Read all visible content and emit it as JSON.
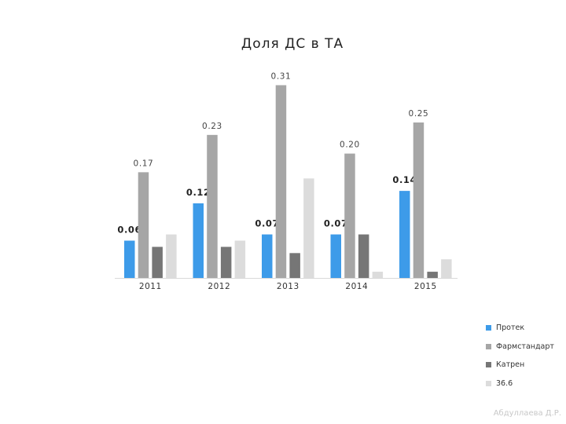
{
  "chart_data": {
    "type": "bar",
    "title": "Доля ДС в ТА",
    "categories": [
      "2011",
      "2012",
      "2013",
      "2014",
      "2015"
    ],
    "series": [
      {
        "name": "Протек",
        "color": "#3d9be9",
        "values": [
          0.06,
          0.12,
          0.07,
          0.07,
          0.14
        ],
        "labels": [
          "0.06",
          "0.12",
          "0.07",
          "0.07",
          "0.14"
        ],
        "label_style": "bold"
      },
      {
        "name": "Фармстандарт",
        "color": "#a6a6a6",
        "values": [
          0.17,
          0.23,
          0.31,
          0.2,
          0.25
        ],
        "labels": [
          "0.17",
          "0.23",
          "0.31",
          "0.20",
          "0.25"
        ],
        "label_style": "normal"
      },
      {
        "name": "Катрен",
        "color": "#767676",
        "values": [
          0.05,
          0.05,
          0.04,
          0.07,
          0.01
        ],
        "labels": [],
        "label_style": "none"
      },
      {
        "name": "36.6",
        "color": "#dcdcdc",
        "values": [
          0.07,
          0.06,
          0.16,
          0.01,
          0.03
        ],
        "labels": [],
        "label_style": "none"
      }
    ],
    "xlabel": "",
    "ylabel": "",
    "ylim": [
      0,
      0.35
    ],
    "grid": false,
    "legend_position": "bottom-right"
  },
  "footer": {
    "author": "Абдуллаева Д.Р."
  }
}
